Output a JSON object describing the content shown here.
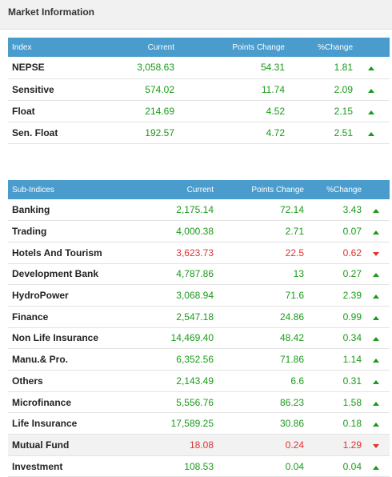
{
  "header": {
    "title": "Market Information"
  },
  "index_table": {
    "columns": [
      "Index",
      "Current",
      "Points Change",
      "%Change"
    ],
    "rows": [
      {
        "name": "NEPSE",
        "current": "3,058.63",
        "points": "54.31",
        "pct": "1.81",
        "dir": "up"
      },
      {
        "name": "Sensitive",
        "current": "574.02",
        "points": "11.74",
        "pct": "2.09",
        "dir": "up"
      },
      {
        "name": "Float",
        "current": "214.69",
        "points": "4.52",
        "pct": "2.15",
        "dir": "up"
      },
      {
        "name": "Sen. Float",
        "current": "192.57",
        "points": "4.72",
        "pct": "2.51",
        "dir": "up"
      }
    ]
  },
  "sub_table": {
    "columns": [
      "Sub-Indices",
      "Current",
      "Points Change",
      "%Change"
    ],
    "rows": [
      {
        "name": "Banking",
        "current": "2,175.14",
        "points": "72.14",
        "pct": "3.43",
        "dir": "up"
      },
      {
        "name": "Trading",
        "current": "4,000.38",
        "points": "2.71",
        "pct": "0.07",
        "dir": "up"
      },
      {
        "name": "Hotels And Tourism",
        "current": "3,623.73",
        "points": "22.5",
        "pct": "0.62",
        "dir": "down"
      },
      {
        "name": "Development Bank",
        "current": "4,787.86",
        "points": "13",
        "pct": "0.27",
        "dir": "up"
      },
      {
        "name": "HydroPower",
        "current": "3,068.94",
        "points": "71.6",
        "pct": "2.39",
        "dir": "up"
      },
      {
        "name": "Finance",
        "current": "2,547.18",
        "points": "24.86",
        "pct": "0.99",
        "dir": "up"
      },
      {
        "name": "Non Life Insurance",
        "current": "14,469.40",
        "points": "48.42",
        "pct": "0.34",
        "dir": "up"
      },
      {
        "name": "Manu.& Pro.",
        "current": "6,352.56",
        "points": "71.86",
        "pct": "1.14",
        "dir": "up"
      },
      {
        "name": "Others",
        "current": "2,143.49",
        "points": "6.6",
        "pct": "0.31",
        "dir": "up"
      },
      {
        "name": "Microfinance",
        "current": "5,556.76",
        "points": "86.23",
        "pct": "1.58",
        "dir": "up"
      },
      {
        "name": "Life Insurance",
        "current": "17,589.25",
        "points": "30.86",
        "pct": "0.18",
        "dir": "up"
      },
      {
        "name": "Mutual Fund",
        "current": "18.08",
        "points": "0.24",
        "pct": "1.29",
        "dir": "down",
        "highlight": true
      },
      {
        "name": "Investment",
        "current": "108.53",
        "points": "0.04",
        "pct": "0.04",
        "dir": "up"
      }
    ]
  },
  "colors": {
    "header_bg": "#4a9ccd",
    "up": "#1a9a1a",
    "down": "#e03232"
  },
  "icons": {
    "up": "triangle-up-icon",
    "down": "triangle-down-icon"
  }
}
